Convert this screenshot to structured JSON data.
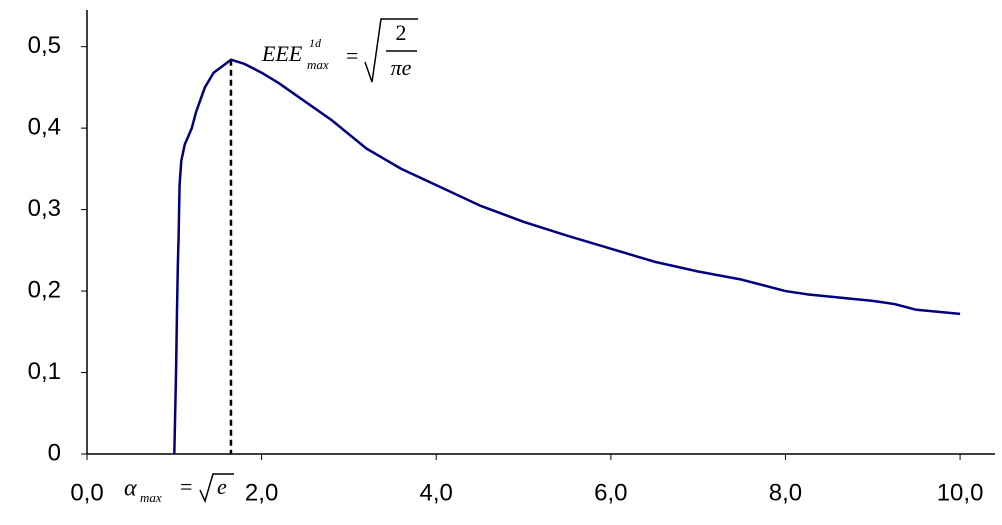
{
  "chart_data": {
    "type": "line",
    "x": [
      1.0,
      1.01,
      1.02,
      1.03,
      1.04,
      1.05,
      1.06,
      1.08,
      1.12,
      1.2,
      1.25,
      1.35,
      1.45,
      1.55,
      1.65,
      1.8,
      2.0,
      2.2,
      2.4,
      2.8,
      3.2,
      3.6,
      4.0,
      4.5,
      5.0,
      5.5,
      6.0,
      6.5,
      7.0,
      7.5,
      8.0,
      8.25,
      9.0,
      9.25,
      9.5,
      10.0
    ],
    "series": [
      {
        "color": "#000080",
        "values": [
          0,
          0.05,
          0.1,
          0.17,
          0.23,
          0.27,
          0.33,
          0.36,
          0.38,
          0.4,
          0.42,
          0.45,
          0.468,
          0.476,
          0.484,
          0.479,
          0.468,
          0.455,
          0.44,
          0.41,
          0.375,
          0.35,
          0.33,
          0.305,
          0.285,
          0.268,
          0.252,
          0.236,
          0.224,
          0.214,
          0.2,
          0.196,
          0.188,
          0.184,
          0.177,
          0.172
        ]
      }
    ],
    "peak": {
      "x": 1.649,
      "y": 0.484
    },
    "xlim": [
      0,
      10.4
    ],
    "ylim": [
      0,
      0.545
    ],
    "xticks": [
      {
        "value": 0,
        "label": "0,0"
      },
      {
        "value": 2,
        "label": "2,0"
      },
      {
        "value": 4,
        "label": "4,0"
      },
      {
        "value": 6,
        "label": "6,0"
      },
      {
        "value": 8,
        "label": "8,0"
      },
      {
        "value": 10,
        "label": "10,0"
      }
    ],
    "yticks": [
      0,
      {
        "value": 0.1,
        "label": "0,1"
      },
      {
        "value": 0.2,
        "label": "0,2"
      },
      {
        "value": 0.3,
        "label": "0,3"
      },
      {
        "value": 0.4,
        "label": "0,4"
      },
      {
        "value": 0.5,
        "label": "0,5"
      }
    ],
    "grid": false,
    "peak_label": {
      "base": "EEE",
      "sup": "1d",
      "sub": "max",
      "eq": "=",
      "num": "2",
      "den": "πe"
    },
    "alpha_label": {
      "base": "α",
      "sub": "max",
      "eq": "=",
      "rhs": "e"
    }
  }
}
